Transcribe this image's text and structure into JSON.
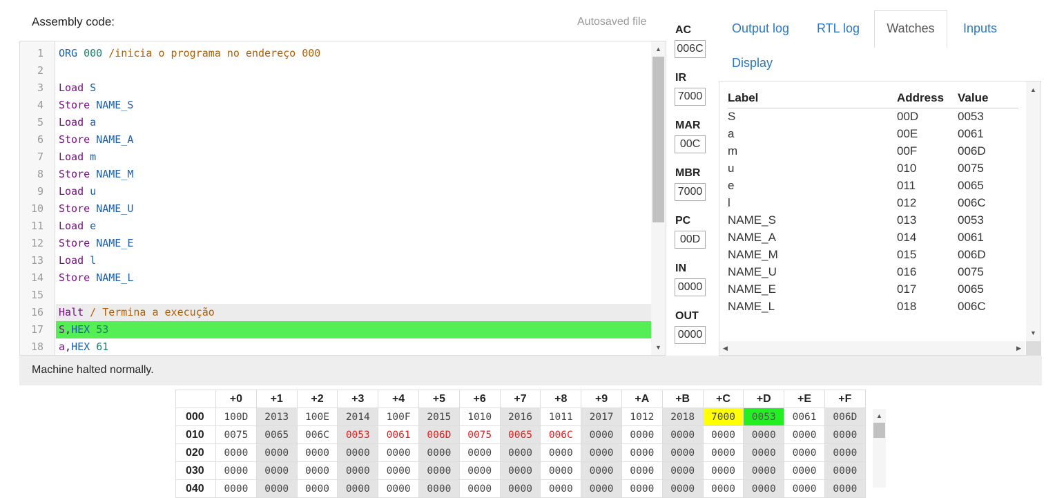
{
  "editor": {
    "title": "Assembly code:",
    "autosave_label": "Autosaved file",
    "lines": [
      {
        "n": "1",
        "parts": [
          {
            "t": "ORG ",
            "c": "id"
          },
          {
            "t": "000 ",
            "c": "num"
          },
          {
            "t": "/inicia o programa no endereço 000",
            "c": "cmt"
          }
        ]
      },
      {
        "n": "2",
        "parts": []
      },
      {
        "n": "3",
        "parts": [
          {
            "t": "Load ",
            "c": "kw"
          },
          {
            "t": "S",
            "c": "id"
          }
        ]
      },
      {
        "n": "4",
        "parts": [
          {
            "t": "Store ",
            "c": "kw"
          },
          {
            "t": "NAME_S",
            "c": "id"
          }
        ]
      },
      {
        "n": "5",
        "parts": [
          {
            "t": "Load ",
            "c": "kw"
          },
          {
            "t": "a",
            "c": "id"
          }
        ]
      },
      {
        "n": "6",
        "parts": [
          {
            "t": "Store ",
            "c": "kw"
          },
          {
            "t": "NAME_A",
            "c": "id"
          }
        ]
      },
      {
        "n": "7",
        "parts": [
          {
            "t": "Load ",
            "c": "kw"
          },
          {
            "t": "m",
            "c": "id"
          }
        ]
      },
      {
        "n": "8",
        "parts": [
          {
            "t": "Store ",
            "c": "kw"
          },
          {
            "t": "NAME_M",
            "c": "id"
          }
        ]
      },
      {
        "n": "9",
        "parts": [
          {
            "t": "Load ",
            "c": "kw"
          },
          {
            "t": "u",
            "c": "id"
          }
        ]
      },
      {
        "n": "10",
        "parts": [
          {
            "t": "Store ",
            "c": "kw"
          },
          {
            "t": "NAME_U",
            "c": "id"
          }
        ]
      },
      {
        "n": "11",
        "parts": [
          {
            "t": "Load ",
            "c": "kw"
          },
          {
            "t": "e",
            "c": "id"
          }
        ]
      },
      {
        "n": "12",
        "parts": [
          {
            "t": "Store ",
            "c": "kw"
          },
          {
            "t": "NAME_E",
            "c": "id"
          }
        ]
      },
      {
        "n": "13",
        "parts": [
          {
            "t": "Load ",
            "c": "kw"
          },
          {
            "t": "l",
            "c": "id"
          }
        ]
      },
      {
        "n": "14",
        "parts": [
          {
            "t": "Store ",
            "c": "kw"
          },
          {
            "t": "NAME_L",
            "c": "id"
          }
        ]
      },
      {
        "n": "15",
        "parts": []
      },
      {
        "n": "16",
        "hl": "gray",
        "parts": [
          {
            "t": "Halt ",
            "c": "kw"
          },
          {
            "t": "/ Termina a execução",
            "c": "cmt"
          }
        ]
      },
      {
        "n": "17",
        "hl": "green",
        "parts": [
          {
            "t": "S",
            "c": "kw"
          },
          {
            "t": ",",
            "c": "blk"
          },
          {
            "t": "HEX ",
            "c": "id"
          },
          {
            "t": "53",
            "c": "num"
          }
        ]
      },
      {
        "n": "18",
        "parts": [
          {
            "t": "a",
            "c": "kw"
          },
          {
            "t": ",",
            "c": "blk"
          },
          {
            "t": "HEX ",
            "c": "id"
          },
          {
            "t": "61",
            "c": "num"
          }
        ]
      }
    ]
  },
  "status": "Machine halted normally.",
  "registers": [
    {
      "name": "AC",
      "value": "006C"
    },
    {
      "name": "IR",
      "value": "7000"
    },
    {
      "name": "MAR",
      "value": "00C"
    },
    {
      "name": "MBR",
      "value": "7000"
    },
    {
      "name": "PC",
      "value": "00D"
    },
    {
      "name": "IN",
      "value": "0000"
    },
    {
      "name": "OUT",
      "value": "0000"
    }
  ],
  "tabs": {
    "output_log": "Output log",
    "rtl_log": "RTL log",
    "watches": "Watches",
    "inputs": "Inputs",
    "display": "Display"
  },
  "watches": {
    "headers": {
      "label": "Label",
      "address": "Address",
      "value": "Value"
    },
    "rows": [
      [
        "S",
        "00D",
        "0053"
      ],
      [
        "a",
        "00E",
        "0061"
      ],
      [
        "m",
        "00F",
        "006D"
      ],
      [
        "u",
        "010",
        "0075"
      ],
      [
        "e",
        "011",
        "0065"
      ],
      [
        "l",
        "012",
        "006C"
      ],
      [
        "NAME_S",
        "013",
        "0053"
      ],
      [
        "NAME_A",
        "014",
        "0061"
      ],
      [
        "NAME_M",
        "015",
        "006D"
      ],
      [
        "NAME_U",
        "016",
        "0075"
      ],
      [
        "NAME_E",
        "017",
        "0065"
      ],
      [
        "NAME_L",
        "018",
        "006C"
      ]
    ]
  },
  "memory": {
    "col_headers": [
      "+0",
      "+1",
      "+2",
      "+3",
      "+4",
      "+5",
      "+6",
      "+7",
      "+8",
      "+9",
      "+A",
      "+B",
      "+C",
      "+D",
      "+E",
      "+F"
    ],
    "rows": [
      {
        "addr": "000",
        "cells": [
          "100D",
          "2013",
          "100E",
          "2014",
          "100F",
          "2015",
          "1010",
          "2016",
          "1011",
          "2017",
          "1012",
          "2018",
          "7000",
          "0053",
          "0061",
          "006D"
        ]
      },
      {
        "addr": "010",
        "cells": [
          "0075",
          "0065",
          "006C",
          "0053",
          "0061",
          "006D",
          "0075",
          "0065",
          "006C",
          "0000",
          "0000",
          "0000",
          "0000",
          "0000",
          "0000",
          "0000"
        ]
      },
      {
        "addr": "020",
        "cells": [
          "0000",
          "0000",
          "0000",
          "0000",
          "0000",
          "0000",
          "0000",
          "0000",
          "0000",
          "0000",
          "0000",
          "0000",
          "0000",
          "0000",
          "0000",
          "0000"
        ]
      },
      {
        "addr": "030",
        "cells": [
          "0000",
          "0000",
          "0000",
          "0000",
          "0000",
          "0000",
          "0000",
          "0000",
          "0000",
          "0000",
          "0000",
          "0000",
          "0000",
          "0000",
          "0000",
          "0000"
        ]
      },
      {
        "addr": "040",
        "cells": [
          "0000",
          "0000",
          "0000",
          "0000",
          "0000",
          "0000",
          "0000",
          "0000",
          "0000",
          "0000",
          "0000",
          "0000",
          "0000",
          "0000",
          "0000",
          "0000"
        ]
      }
    ],
    "highlight": {
      "yellow": [
        [
          0,
          12
        ]
      ],
      "green": [
        [
          0,
          13
        ]
      ],
      "red": [
        [
          1,
          3
        ],
        [
          1,
          4
        ],
        [
          1,
          5
        ],
        [
          1,
          6
        ],
        [
          1,
          7
        ],
        [
          1,
          8
        ]
      ]
    }
  }
}
